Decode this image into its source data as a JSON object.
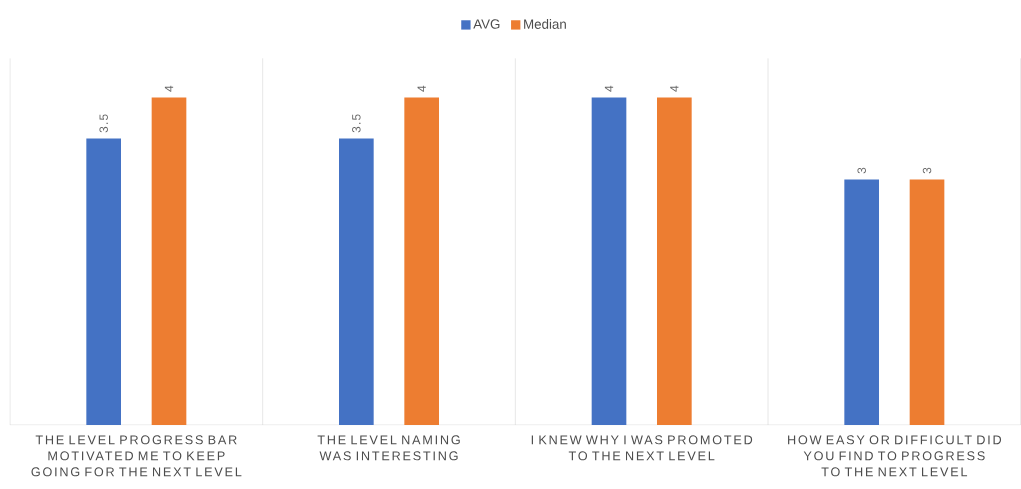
{
  "chart_data": {
    "type": "bar",
    "categories": [
      "THE LEVEL PROGRESS BAR MOTIVATED ME TO KEEP GOING FOR THE NEXT LEVEL",
      "THE LEVEL NAMING WAS INTERESTING",
      "I KNEW WHY I WAS PROMOTED TO THE NEXT LEVEL",
      "HOW EASY OR DIFFICULT DID YOU FIND TO PROGRESS TO THE NEXT LEVEL"
    ],
    "series": [
      {
        "name": "AVG",
        "color": "#4472c4",
        "values": [
          3.5,
          3.5,
          4,
          3
        ]
      },
      {
        "name": "Median",
        "color": "#ed7d31",
        "values": [
          4,
          4,
          4,
          3
        ]
      }
    ],
    "data_labels": true,
    "grid": "x",
    "legend": "top"
  }
}
